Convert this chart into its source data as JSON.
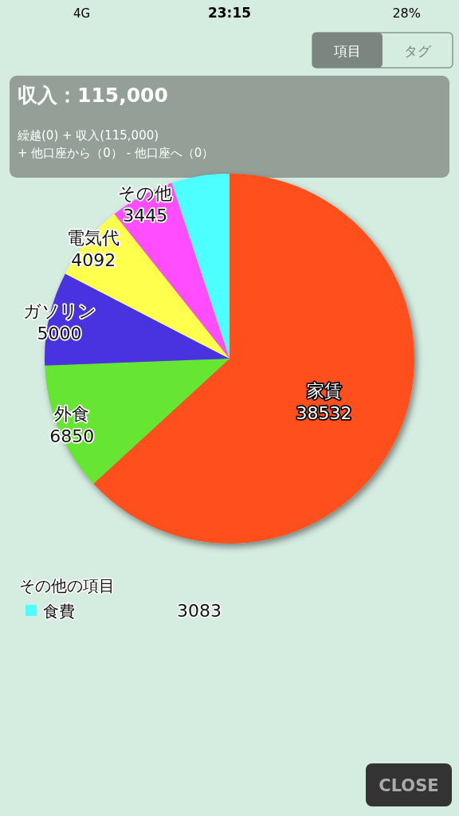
{
  "chart_data": {
    "type": "pie",
    "title": "収入：115,000",
    "subtitle": "繰越(0) + 収入(115,000)\n+ 他口座から（0） - 他口座へ（0）",
    "categories": [
      "家賃",
      "外食",
      "ガソリン",
      "電気代",
      "その他",
      "食費"
    ],
    "values": [
      38532,
      6850,
      5000,
      4092,
      3445,
      3083
    ],
    "colors": [
      "#ff4f1a",
      "#66e633",
      "#4a33e0",
      "#ffff4d",
      "#ff4dff",
      "#4dffff"
    ],
    "value_labels": [
      "38532",
      "6850",
      "5000",
      "4092",
      "3445",
      "3083"
    ],
    "legend": "bottom left",
    "legend_title": "その他の項目",
    "annotations": [
      "23:15",
      "4G",
      "28%",
      "項目",
      "タグ",
      "CLOSE"
    ]
  }
}
